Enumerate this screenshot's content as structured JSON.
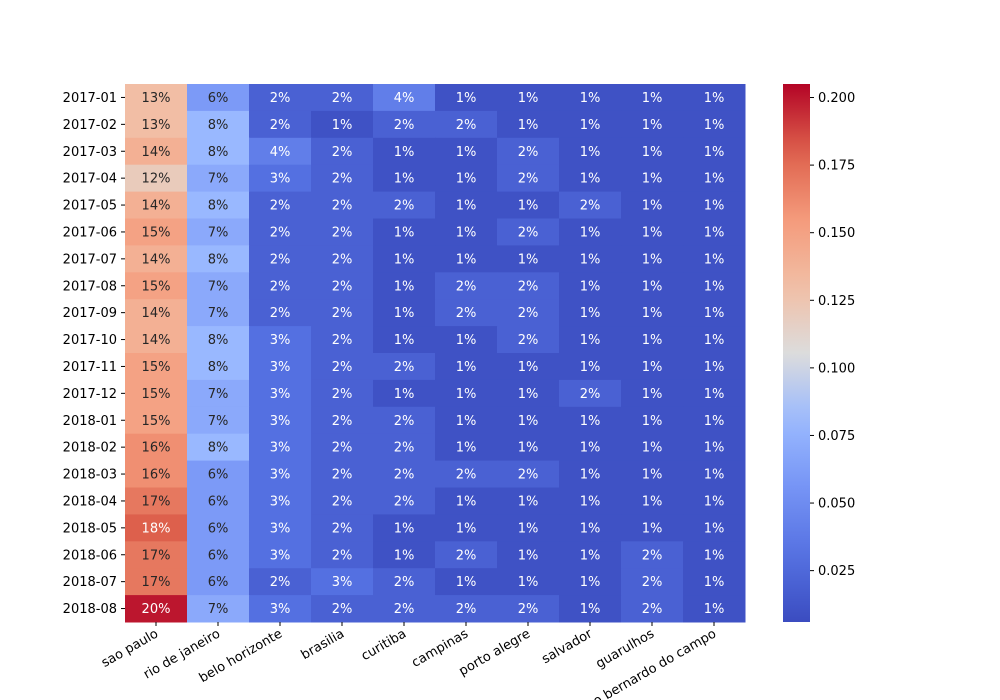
{
  "chart_data": {
    "type": "heatmap",
    "title": "",
    "xlabel": "",
    "ylabel": "",
    "rows": [
      "2017-01",
      "2017-02",
      "2017-03",
      "2017-04",
      "2017-05",
      "2017-06",
      "2017-07",
      "2017-08",
      "2017-09",
      "2017-10",
      "2017-11",
      "2017-12",
      "2018-01",
      "2018-02",
      "2018-03",
      "2018-04",
      "2018-05",
      "2018-06",
      "2018-07",
      "2018-08"
    ],
    "columns": [
      "sao paulo",
      "rio de janeiro",
      "belo horizonte",
      "brasilia",
      "curitiba",
      "campinas",
      "porto alegre",
      "salvador",
      "guarulhos",
      "sao bernardo do campo"
    ],
    "values": [
      [
        0.13,
        0.06,
        0.02,
        0.02,
        0.04,
        0.01,
        0.01,
        0.01,
        0.01,
        0.01
      ],
      [
        0.13,
        0.08,
        0.02,
        0.01,
        0.02,
        0.02,
        0.01,
        0.01,
        0.01,
        0.01
      ],
      [
        0.14,
        0.08,
        0.04,
        0.02,
        0.01,
        0.01,
        0.02,
        0.01,
        0.01,
        0.01
      ],
      [
        0.12,
        0.07,
        0.03,
        0.02,
        0.01,
        0.01,
        0.02,
        0.01,
        0.01,
        0.01
      ],
      [
        0.14,
        0.08,
        0.02,
        0.02,
        0.02,
        0.01,
        0.01,
        0.02,
        0.01,
        0.01
      ],
      [
        0.15,
        0.07,
        0.02,
        0.02,
        0.01,
        0.01,
        0.02,
        0.01,
        0.01,
        0.01
      ],
      [
        0.14,
        0.08,
        0.02,
        0.02,
        0.01,
        0.01,
        0.01,
        0.01,
        0.01,
        0.01
      ],
      [
        0.15,
        0.07,
        0.02,
        0.02,
        0.01,
        0.02,
        0.02,
        0.01,
        0.01,
        0.01
      ],
      [
        0.14,
        0.07,
        0.02,
        0.02,
        0.01,
        0.02,
        0.02,
        0.01,
        0.01,
        0.01
      ],
      [
        0.14,
        0.08,
        0.03,
        0.02,
        0.01,
        0.01,
        0.02,
        0.01,
        0.01,
        0.01
      ],
      [
        0.15,
        0.08,
        0.03,
        0.02,
        0.02,
        0.01,
        0.01,
        0.01,
        0.01,
        0.01
      ],
      [
        0.15,
        0.07,
        0.03,
        0.02,
        0.01,
        0.01,
        0.01,
        0.02,
        0.01,
        0.01
      ],
      [
        0.15,
        0.07,
        0.03,
        0.02,
        0.02,
        0.01,
        0.01,
        0.01,
        0.01,
        0.01
      ],
      [
        0.16,
        0.08,
        0.03,
        0.02,
        0.02,
        0.01,
        0.01,
        0.01,
        0.01,
        0.01
      ],
      [
        0.16,
        0.06,
        0.03,
        0.02,
        0.02,
        0.02,
        0.02,
        0.01,
        0.01,
        0.01
      ],
      [
        0.17,
        0.06,
        0.03,
        0.02,
        0.02,
        0.01,
        0.01,
        0.01,
        0.01,
        0.01
      ],
      [
        0.18,
        0.06,
        0.03,
        0.02,
        0.01,
        0.01,
        0.01,
        0.01,
        0.01,
        0.01
      ],
      [
        0.17,
        0.06,
        0.03,
        0.02,
        0.01,
        0.02,
        0.01,
        0.01,
        0.02,
        0.01
      ],
      [
        0.17,
        0.06,
        0.02,
        0.03,
        0.02,
        0.01,
        0.01,
        0.01,
        0.02,
        0.01
      ],
      [
        0.2,
        0.07,
        0.03,
        0.02,
        0.02,
        0.02,
        0.02,
        0.01,
        0.02,
        0.01
      ]
    ],
    "cell_labels": [
      [
        "13%",
        "6%",
        "2%",
        "2%",
        "4%",
        "1%",
        "1%",
        "1%",
        "1%",
        "1%"
      ],
      [
        "13%",
        "8%",
        "2%",
        "1%",
        "2%",
        "2%",
        "1%",
        "1%",
        "1%",
        "1%"
      ],
      [
        "14%",
        "8%",
        "4%",
        "2%",
        "1%",
        "1%",
        "2%",
        "1%",
        "1%",
        "1%"
      ],
      [
        "12%",
        "7%",
        "3%",
        "2%",
        "1%",
        "1%",
        "2%",
        "1%",
        "1%",
        "1%"
      ],
      [
        "14%",
        "8%",
        "2%",
        "2%",
        "2%",
        "1%",
        "1%",
        "2%",
        "1%",
        "1%"
      ],
      [
        "15%",
        "7%",
        "2%",
        "2%",
        "1%",
        "1%",
        "2%",
        "1%",
        "1%",
        "1%"
      ],
      [
        "14%",
        "8%",
        "2%",
        "2%",
        "1%",
        "1%",
        "1%",
        "1%",
        "1%",
        "1%"
      ],
      [
        "15%",
        "7%",
        "2%",
        "2%",
        "1%",
        "2%",
        "2%",
        "1%",
        "1%",
        "1%"
      ],
      [
        "14%",
        "7%",
        "2%",
        "2%",
        "1%",
        "2%",
        "2%",
        "1%",
        "1%",
        "1%"
      ],
      [
        "14%",
        "8%",
        "3%",
        "2%",
        "1%",
        "1%",
        "2%",
        "1%",
        "1%",
        "1%"
      ],
      [
        "15%",
        "8%",
        "3%",
        "2%",
        "2%",
        "1%",
        "1%",
        "1%",
        "1%",
        "1%"
      ],
      [
        "15%",
        "7%",
        "3%",
        "2%",
        "1%",
        "1%",
        "1%",
        "2%",
        "1%",
        "1%"
      ],
      [
        "15%",
        "7%",
        "3%",
        "2%",
        "2%",
        "1%",
        "1%",
        "1%",
        "1%",
        "1%"
      ],
      [
        "16%",
        "8%",
        "3%",
        "2%",
        "2%",
        "1%",
        "1%",
        "1%",
        "1%",
        "1%"
      ],
      [
        "16%",
        "6%",
        "3%",
        "2%",
        "2%",
        "2%",
        "2%",
        "1%",
        "1%",
        "1%"
      ],
      [
        "17%",
        "6%",
        "3%",
        "2%",
        "2%",
        "1%",
        "1%",
        "1%",
        "1%",
        "1%"
      ],
      [
        "18%",
        "6%",
        "3%",
        "2%",
        "1%",
        "1%",
        "1%",
        "1%",
        "1%",
        "1%"
      ],
      [
        "17%",
        "6%",
        "3%",
        "2%",
        "1%",
        "2%",
        "1%",
        "1%",
        "2%",
        "1%"
      ],
      [
        "17%",
        "6%",
        "2%",
        "3%",
        "2%",
        "1%",
        "1%",
        "1%",
        "2%",
        "1%"
      ],
      [
        "20%",
        "7%",
        "3%",
        "2%",
        "2%",
        "2%",
        "2%",
        "1%",
        "2%",
        "1%"
      ]
    ],
    "colormap": "coolwarm",
    "colorbar": {
      "vmin": 0.006,
      "vmax": 0.205,
      "ticks": [
        0.025,
        0.05,
        0.075,
        0.1,
        0.125,
        0.15,
        0.175,
        0.2
      ],
      "tick_labels": [
        "0.025",
        "0.050",
        "0.075",
        "0.100",
        "0.125",
        "0.150",
        "0.175",
        "0.200"
      ]
    },
    "grid": false,
    "legend": "colorbar-right"
  }
}
